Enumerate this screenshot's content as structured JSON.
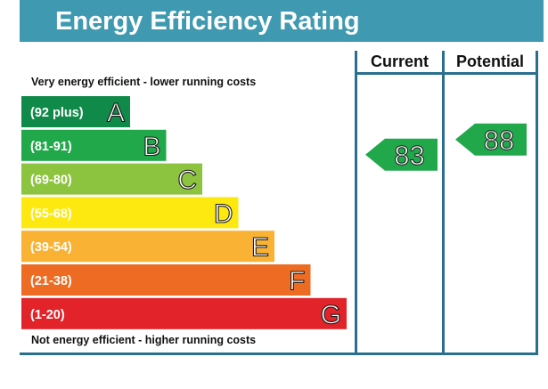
{
  "title": "Energy Efficiency Rating",
  "columns": {
    "current": "Current",
    "potential": "Potential"
  },
  "top_note": "Very energy efficient - lower running costs",
  "bottom_note": "Not energy efficient - higher running costs",
  "chart_data": {
    "type": "bar",
    "title": "Energy Efficiency Rating",
    "bands": [
      {
        "range": "(92 plus)",
        "letter": "A",
        "color": "#108a48"
      },
      {
        "range": "(81-91)",
        "letter": "B",
        "color": "#21a84b"
      },
      {
        "range": "(69-80)",
        "letter": "C",
        "color": "#8dc43f"
      },
      {
        "range": "(55-68)",
        "letter": "D",
        "color": "#fde910"
      },
      {
        "range": "(39-54)",
        "letter": "E",
        "color": "#f9b233"
      },
      {
        "range": "(21-38)",
        "letter": "F",
        "color": "#ed6b22"
      },
      {
        "range": "(1-20)",
        "letter": "G",
        "color": "#e2232a"
      }
    ],
    "current": {
      "value": 83,
      "band": "B",
      "color": "#21a84b"
    },
    "potential": {
      "value": 88,
      "band": "B",
      "color": "#21a84b"
    }
  }
}
